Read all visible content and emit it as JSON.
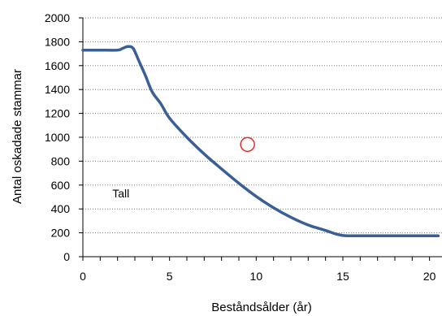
{
  "chart_data": {
    "type": "line",
    "xlabel": "Beståndsålder (år)",
    "ylabel": "Antal oskadade stammar",
    "xlim": [
      0,
      20
    ],
    "ylim": [
      0,
      2000
    ],
    "xticks": [
      0,
      5,
      10,
      15,
      20
    ],
    "yticks": [
      0,
      200,
      400,
      600,
      800,
      1000,
      1200,
      1400,
      1600,
      1800,
      2000
    ],
    "grid": true,
    "legend": "none",
    "colors": {
      "series": "#3a5f94",
      "marker": "#e0312b"
    },
    "series": [
      {
        "x": [
          0,
          1,
          2,
          2.3,
          2.6,
          2.9,
          3.2,
          3.6,
          4,
          4.5,
          5,
          6,
          7,
          8,
          9,
          10,
          11,
          12,
          13,
          14,
          14.6,
          15,
          15.3,
          16,
          18,
          20.5
        ],
        "y": [
          1730,
          1730,
          1730,
          1745,
          1760,
          1745,
          1650,
          1520,
          1380,
          1280,
          1160,
          1000,
          860,
          735,
          615,
          505,
          410,
          330,
          265,
          220,
          190,
          178,
          175,
          175,
          175,
          175
        ]
      }
    ],
    "annotations": [
      {
        "text": "Tall",
        "x": 1.7,
        "y": 530
      }
    ],
    "markers": [
      {
        "shape": "open-circle",
        "x": 9.5,
        "y": 940
      }
    ]
  }
}
